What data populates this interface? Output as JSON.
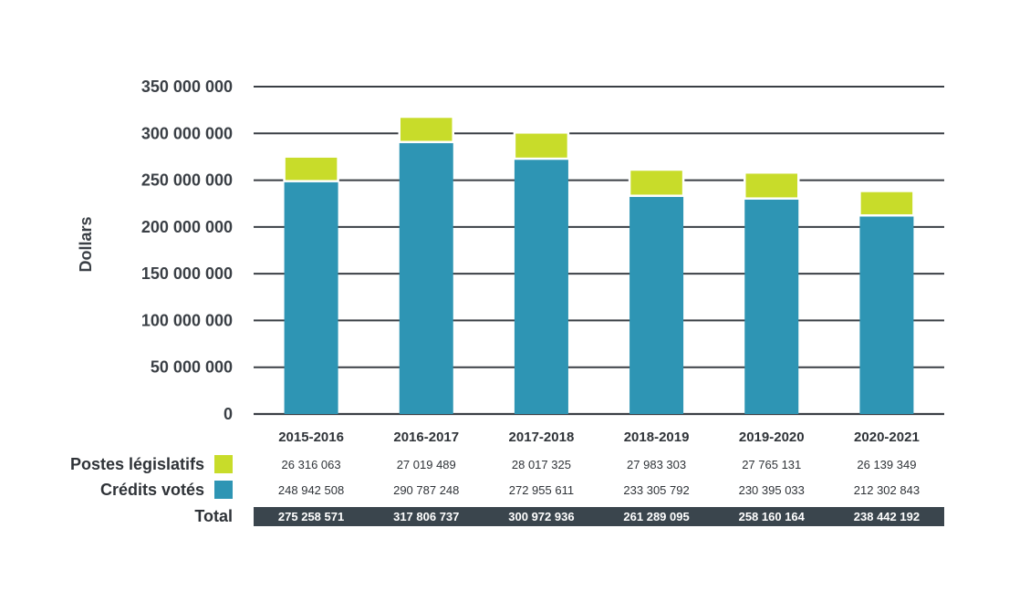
{
  "chart_data": {
    "type": "bar",
    "stacked": true,
    "title": "",
    "xlabel": "",
    "ylabel": "Dollars",
    "ylim": [
      0,
      350000000
    ],
    "grid": true,
    "categories": [
      "2015-2016",
      "2016-2017",
      "2017-2018",
      "2018-2019",
      "2019-2020",
      "2020-2021"
    ],
    "y_ticks": [
      "0",
      "50 000 000",
      "100 000 000",
      "150 000 000",
      "200 000 000",
      "250 000 000",
      "300 000 000",
      "350 000 000"
    ],
    "series": [
      {
        "name": "Crédits votés",
        "color": "#2e95b4",
        "values": [
          248942508,
          290787248,
          272955611,
          233305792,
          230395033,
          212302843
        ],
        "labels": [
          "248 942 508",
          "290 787 248",
          "272 955 611",
          "233 305 792",
          "230 395 033",
          "212 302 843"
        ]
      },
      {
        "name": "Postes législatifs",
        "color": "#c8dc2a",
        "values": [
          26316063,
          27019489,
          28017325,
          27983303,
          27765131,
          26139349
        ],
        "labels": [
          "26 316 063",
          "27 019 489",
          "28 017 325",
          "27 983 303",
          "27 765 131",
          "26 139 349"
        ]
      }
    ],
    "totals": {
      "name": "Total",
      "color": "#3a454d",
      "values": [
        275258571,
        317806737,
        300972936,
        261289095,
        258160164,
        238442192
      ],
      "labels": [
        "275 258 571",
        "317 806 737",
        "300 972 936",
        "261 289 095",
        "258 160 164",
        "238 442 192"
      ]
    },
    "legend_position": "bottom-left table"
  }
}
